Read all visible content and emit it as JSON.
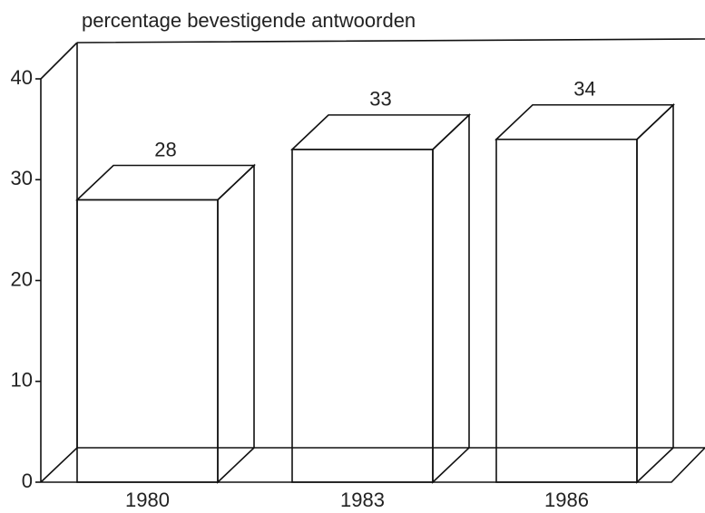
{
  "chart_data": {
    "type": "bar3d",
    "ylabel": "percentage bevestigende antwoorden",
    "categories": [
      "1980",
      "1983",
      "1986"
    ],
    "values": [
      28,
      33,
      34
    ],
    "ylim": [
      0,
      40
    ],
    "yticks": [
      0,
      10,
      20,
      30,
      40
    ]
  }
}
